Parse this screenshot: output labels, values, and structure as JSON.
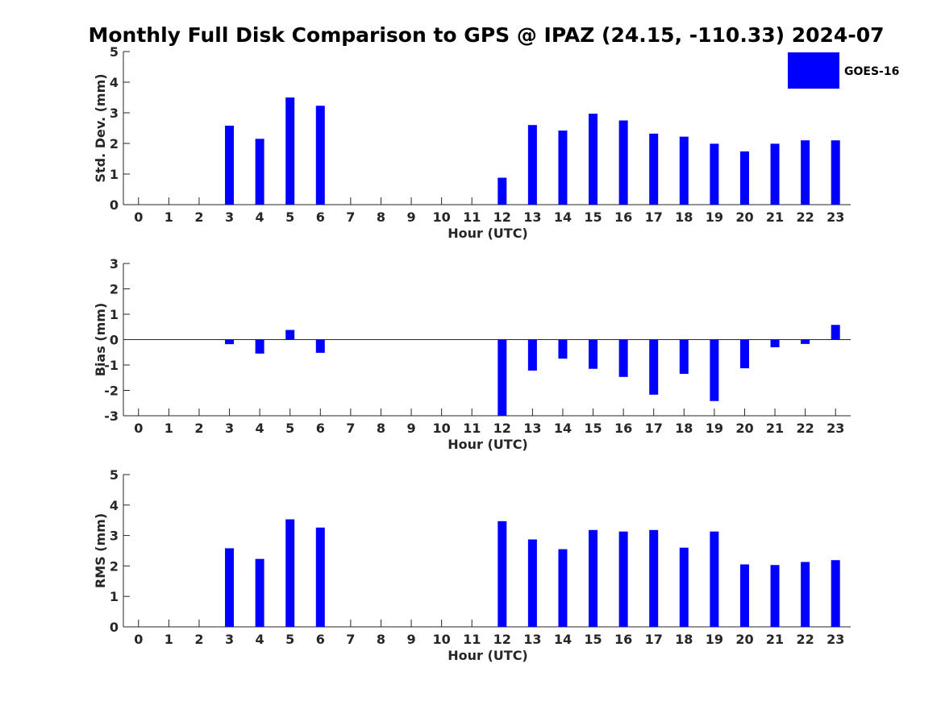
{
  "figure": {
    "title": "Monthly Full Disk Comparison to GPS @ IPAZ (24.15, -110.33) 2024-07",
    "legend": {
      "label": "GOES-16",
      "color": "#0000ff",
      "placement": "top-right"
    },
    "bar_color": "#0000ff"
  },
  "chart_data": [
    {
      "type": "bar",
      "name": "std-dev",
      "categories": [
        "0",
        "1",
        "2",
        "3",
        "4",
        "5",
        "6",
        "7",
        "8",
        "9",
        "10",
        "11",
        "12",
        "13",
        "14",
        "15",
        "16",
        "17",
        "18",
        "19",
        "20",
        "21",
        "22",
        "23"
      ],
      "values": [
        null,
        null,
        null,
        2.58,
        2.15,
        3.5,
        3.23,
        null,
        null,
        null,
        null,
        null,
        0.88,
        2.6,
        2.42,
        2.97,
        2.75,
        2.32,
        2.22,
        1.99,
        1.74,
        1.99,
        2.1,
        2.1
      ],
      "xlabel": "Hour (UTC)",
      "ylabel": "Std. Dev. (mm)",
      "ylim": [
        0,
        5
      ],
      "yticks": [
        0,
        1,
        2,
        3,
        4,
        5
      ],
      "grid": false
    },
    {
      "type": "bar",
      "name": "bias",
      "categories": [
        "0",
        "1",
        "2",
        "3",
        "4",
        "5",
        "6",
        "7",
        "8",
        "9",
        "10",
        "11",
        "12",
        "13",
        "14",
        "15",
        "16",
        "17",
        "18",
        "19",
        "20",
        "21",
        "22",
        "23"
      ],
      "values": [
        null,
        null,
        null,
        -0.18,
        -0.55,
        0.38,
        -0.52,
        null,
        null,
        null,
        null,
        null,
        -3.0,
        -1.22,
        -0.75,
        -1.15,
        -1.47,
        -2.17,
        -1.35,
        -2.42,
        -1.13,
        -0.3,
        -0.17,
        0.58
      ],
      "xlabel": "Hour (UTC)",
      "ylabel": "Bias (mm)",
      "ylim": [
        -3,
        3
      ],
      "yticks": [
        -3,
        -2,
        -1,
        0,
        1,
        2,
        3
      ],
      "grid": false
    },
    {
      "type": "bar",
      "name": "rms",
      "categories": [
        "0",
        "1",
        "2",
        "3",
        "4",
        "5",
        "6",
        "7",
        "8",
        "9",
        "10",
        "11",
        "12",
        "13",
        "14",
        "15",
        "16",
        "17",
        "18",
        "19",
        "20",
        "21",
        "22",
        "23"
      ],
      "values": [
        null,
        null,
        null,
        2.58,
        2.23,
        3.53,
        3.26,
        null,
        null,
        null,
        null,
        null,
        3.47,
        2.87,
        2.55,
        3.18,
        3.13,
        3.18,
        2.6,
        3.13,
        2.05,
        2.03,
        2.13,
        2.19
      ],
      "xlabel": "Hour (UTC)",
      "ylabel": "RMS (mm)",
      "ylim": [
        0,
        5
      ],
      "yticks": [
        0,
        1,
        2,
        3,
        4,
        5
      ],
      "grid": false
    }
  ]
}
